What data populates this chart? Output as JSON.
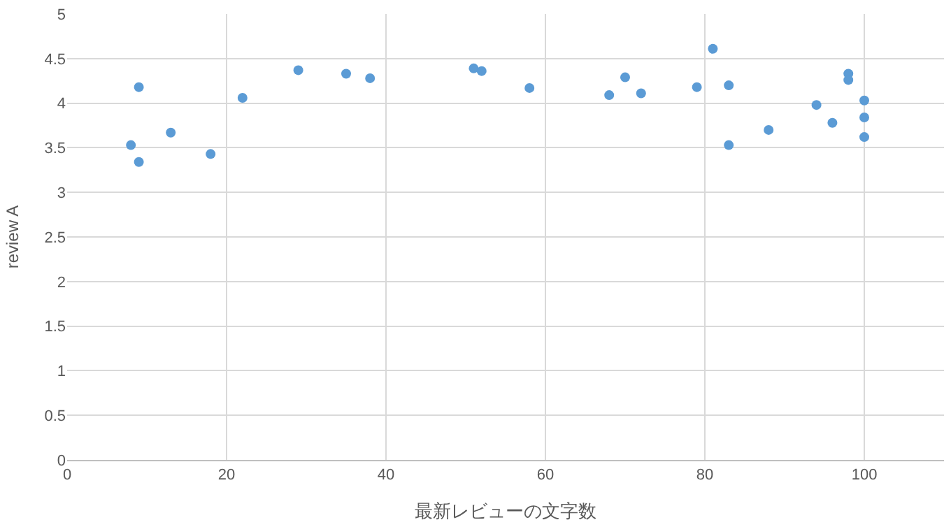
{
  "chart_data": {
    "type": "scatter",
    "xlabel": "最新レビューの文字数",
    "ylabel": "review A",
    "x": [
      8,
      9,
      9,
      13,
      18,
      22,
      29,
      35,
      38,
      51,
      52,
      58,
      68,
      70,
      72,
      79,
      81,
      83,
      83,
      88,
      94,
      96,
      98,
      98,
      100,
      100,
      100
    ],
    "series": [
      {
        "color": "#5b9bd5",
        "values": [
          3.53,
          3.34,
          4.18,
          3.67,
          3.43,
          4.06,
          4.37,
          4.33,
          4.28,
          4.39,
          4.36,
          4.17,
          4.09,
          4.29,
          4.11,
          4.18,
          4.61,
          4.2,
          3.53,
          3.7,
          3.98,
          3.78,
          4.33,
          4.26,
          4.03,
          3.84,
          3.62
        ]
      }
    ],
    "xlim": [
      0,
      110
    ],
    "xticks": [
      0,
      20,
      40,
      60,
      80,
      100
    ],
    "ylim": [
      0,
      5
    ],
    "yticks": [
      0,
      0.5,
      1,
      1.5,
      2,
      2.5,
      3,
      3.5,
      4,
      4.5,
      5
    ],
    "grid": true,
    "marker": "circle"
  }
}
